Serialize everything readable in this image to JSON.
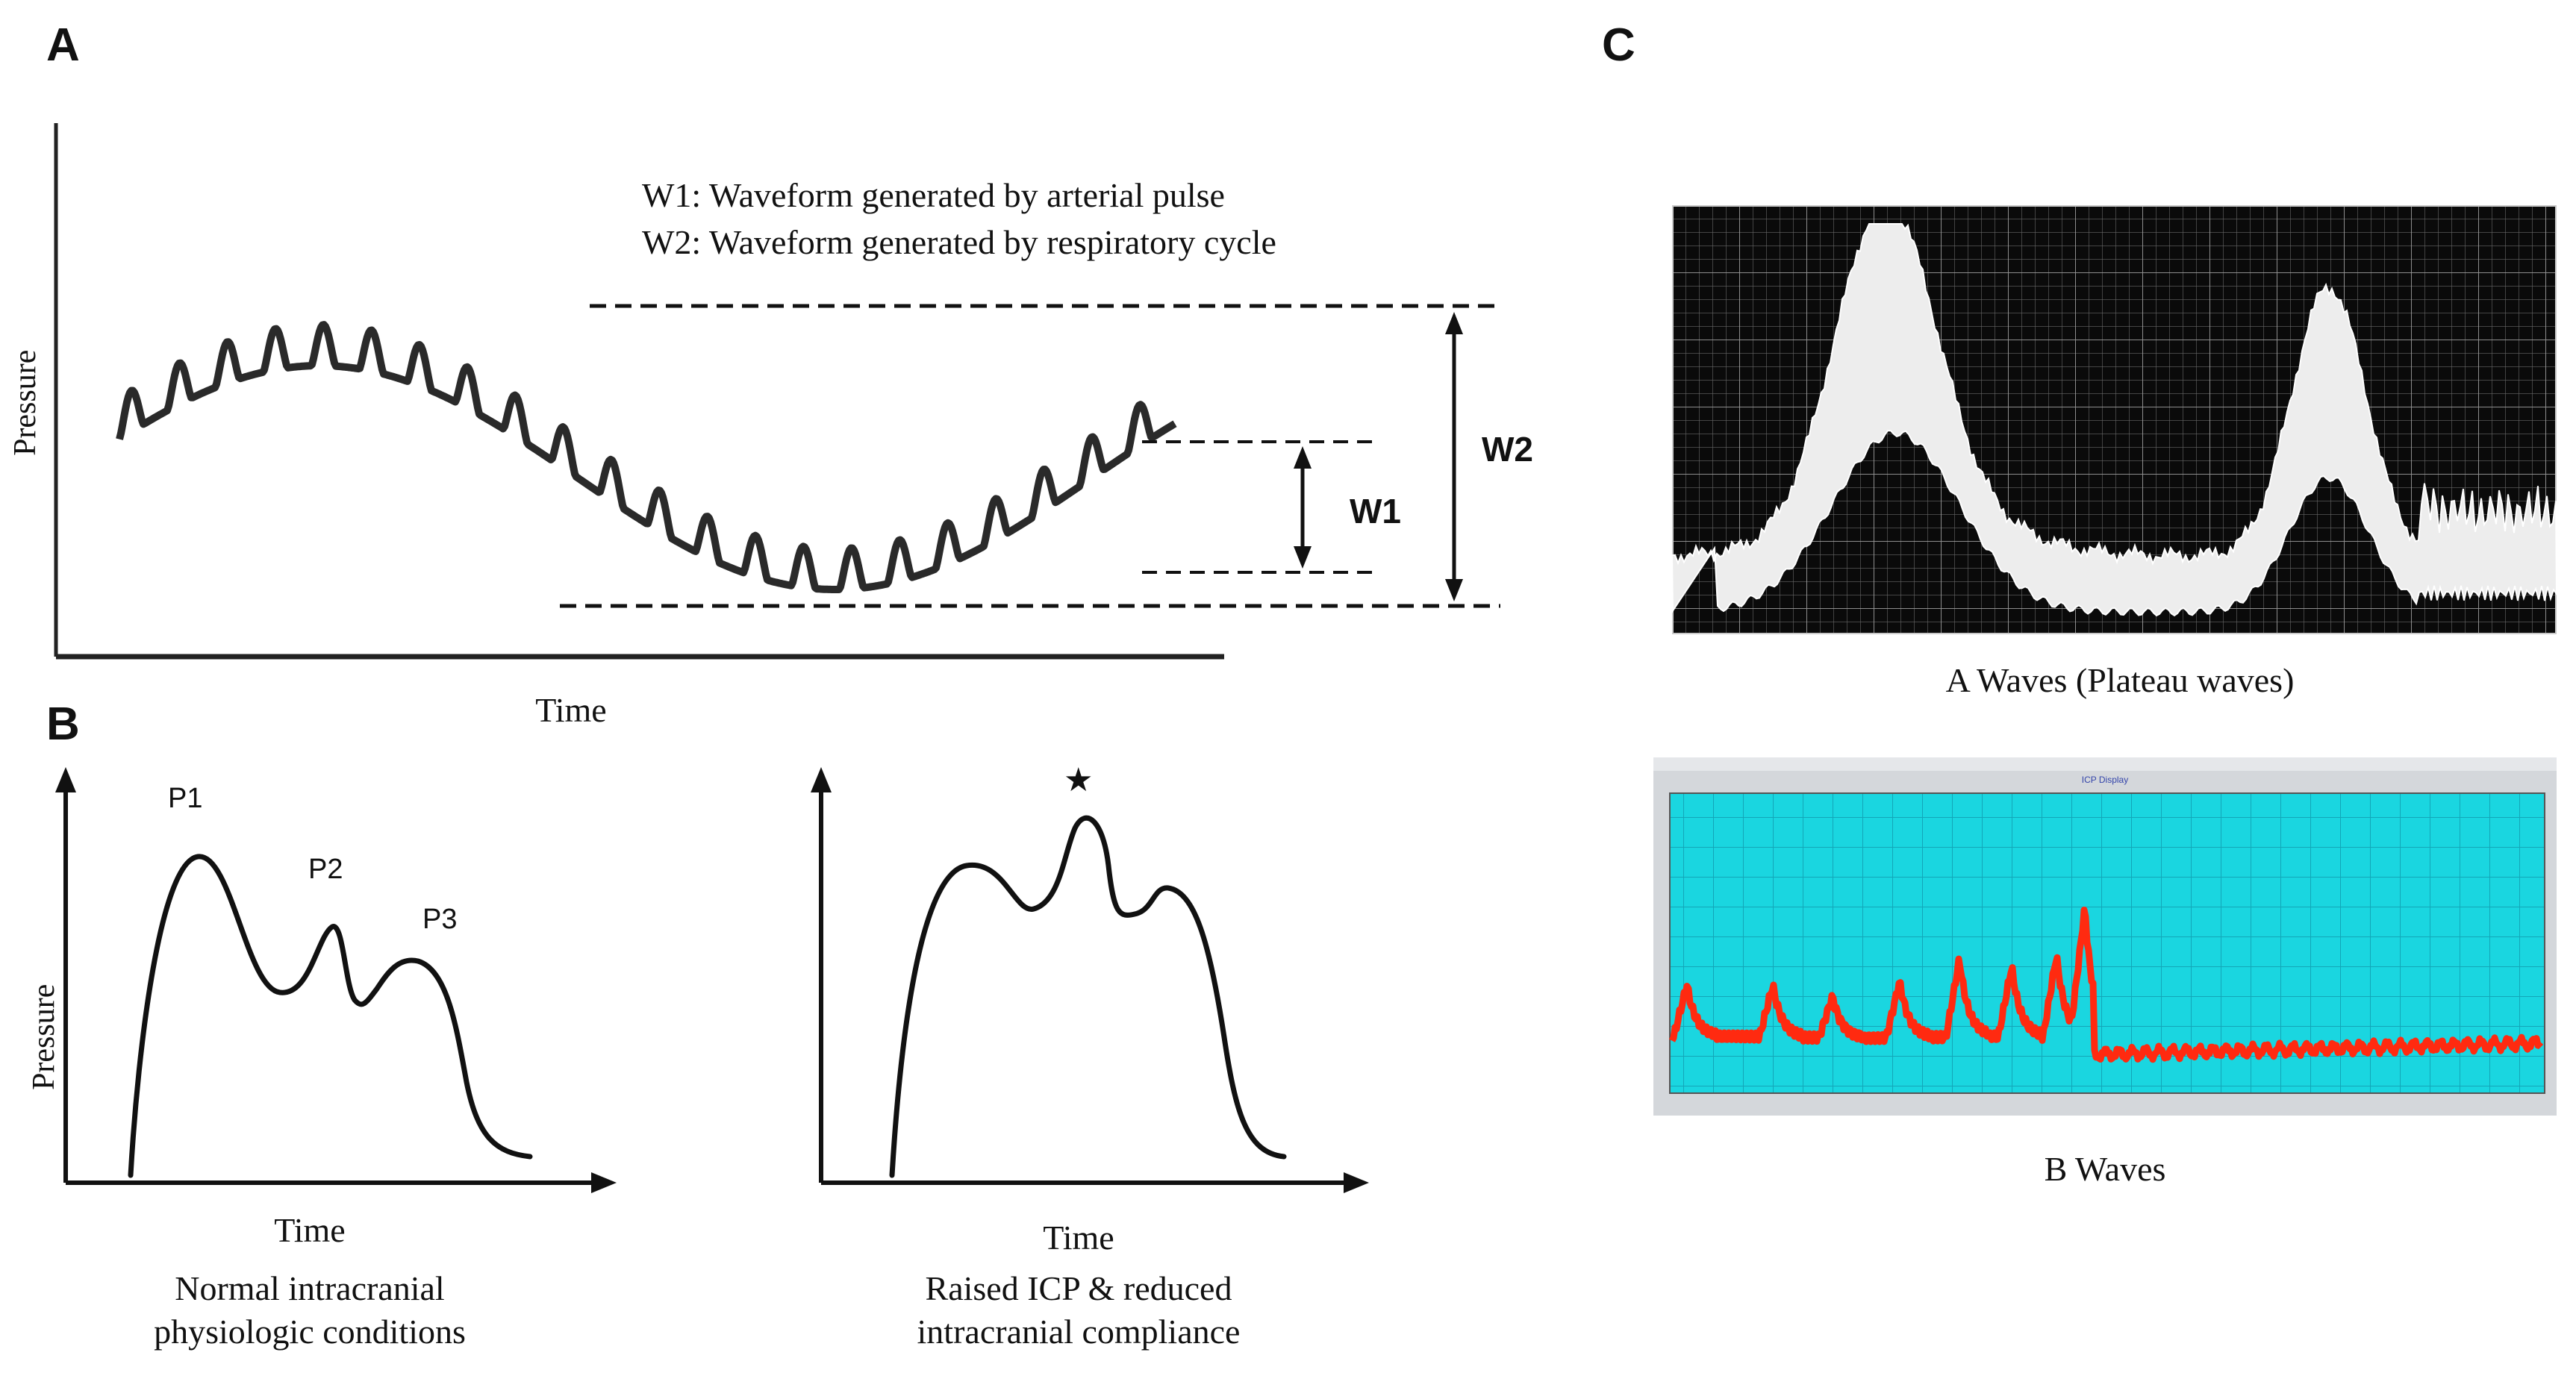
{
  "panels": {
    "a": "A",
    "b": "B",
    "c": "C"
  },
  "panel_a": {
    "ylabel": "Pressure",
    "xlabel": "Time",
    "legend_w1": "W1: Waveform generated by arterial pulse",
    "legend_w2": "W2: Waveform generated by respiratory cycle",
    "w1_label": "W1",
    "w2_label": "W2"
  },
  "panel_b": {
    "left": {
      "ylabel": "Pressure",
      "xlabel": "Time",
      "p1": "P1",
      "p2": "P2",
      "p3": "P3",
      "caption_line1": "Normal intracranial",
      "caption_line2": "physiologic conditions"
    },
    "right": {
      "star": "★",
      "xlabel": "Time",
      "caption_line1": "Raised ICP & reduced",
      "caption_line2": "intracranial compliance"
    }
  },
  "panel_c": {
    "a_waves_caption": "A Waves (Plateau waves)",
    "b_waves_caption": "B Waves",
    "b_monitor_title": "ICP Display"
  },
  "colors": {
    "ink": "#111111",
    "trace_dark": "#1a1a1a",
    "monitor_bg": "#000000",
    "monitor_trace": "#f2f2f2",
    "display_bg": "#1ad6e0",
    "display_trace": "#ff2a10",
    "display_frame": "#cfd3d8"
  }
}
